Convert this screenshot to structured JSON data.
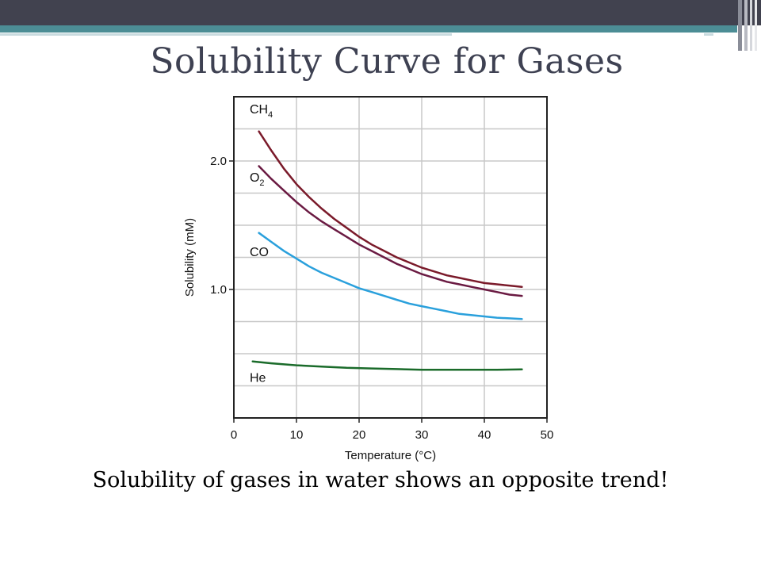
{
  "slide": {
    "title": "Solubility Curve for Gases",
    "caption": "Solubility of gases in water shows an opposite trend!",
    "header_color": "#41424f",
    "accent_color": "#4c8d95"
  },
  "chart_data": {
    "type": "line",
    "xlabel": "Temperature (°C)",
    "ylabel": "Solubility (mM)",
    "xlim": [
      0,
      50
    ],
    "ylim": [
      0,
      2.5
    ],
    "x_ticks": [
      0,
      10,
      20,
      30,
      40,
      50
    ],
    "y_ticks": [
      1.0,
      2.0
    ],
    "y_tick_labels": [
      "1.0",
      "2.0"
    ],
    "grid": true,
    "series": [
      {
        "name": "CH4",
        "label_main": "CH",
        "label_sub": "4",
        "color": "#7a1a2a",
        "points": [
          [
            4,
            2.23
          ],
          [
            6,
            2.08
          ],
          [
            8,
            1.94
          ],
          [
            10,
            1.82
          ],
          [
            12,
            1.72
          ],
          [
            14,
            1.63
          ],
          [
            16,
            1.55
          ],
          [
            18,
            1.48
          ],
          [
            20,
            1.41
          ],
          [
            22,
            1.35
          ],
          [
            24,
            1.3
          ],
          [
            26,
            1.25
          ],
          [
            28,
            1.21
          ],
          [
            30,
            1.17
          ],
          [
            32,
            1.14
          ],
          [
            34,
            1.11
          ],
          [
            36,
            1.09
          ],
          [
            38,
            1.07
          ],
          [
            40,
            1.05
          ],
          [
            42,
            1.04
          ],
          [
            44,
            1.03
          ],
          [
            46,
            1.02
          ]
        ]
      },
      {
        "name": "O2",
        "label_main": "O",
        "label_sub": "2",
        "color": "#6a1a42",
        "points": [
          [
            4,
            1.96
          ],
          [
            6,
            1.86
          ],
          [
            8,
            1.77
          ],
          [
            10,
            1.68
          ],
          [
            12,
            1.6
          ],
          [
            14,
            1.53
          ],
          [
            16,
            1.47
          ],
          [
            18,
            1.41
          ],
          [
            20,
            1.35
          ],
          [
            22,
            1.3
          ],
          [
            24,
            1.25
          ],
          [
            26,
            1.2
          ],
          [
            28,
            1.16
          ],
          [
            30,
            1.12
          ],
          [
            32,
            1.09
          ],
          [
            34,
            1.06
          ],
          [
            36,
            1.04
          ],
          [
            38,
            1.02
          ],
          [
            40,
            1.0
          ],
          [
            42,
            0.98
          ],
          [
            44,
            0.96
          ],
          [
            46,
            0.95
          ]
        ]
      },
      {
        "name": "CO",
        "label_main": "CO",
        "label_sub": "",
        "color": "#2aa0dc",
        "points": [
          [
            4,
            1.44
          ],
          [
            6,
            1.37
          ],
          [
            8,
            1.3
          ],
          [
            10,
            1.24
          ],
          [
            12,
            1.18
          ],
          [
            14,
            1.13
          ],
          [
            16,
            1.09
          ],
          [
            18,
            1.05
          ],
          [
            20,
            1.01
          ],
          [
            22,
            0.98
          ],
          [
            24,
            0.95
          ],
          [
            26,
            0.92
          ],
          [
            28,
            0.89
          ],
          [
            30,
            0.87
          ],
          [
            32,
            0.85
          ],
          [
            34,
            0.83
          ],
          [
            36,
            0.81
          ],
          [
            38,
            0.8
          ],
          [
            40,
            0.79
          ],
          [
            42,
            0.78
          ],
          [
            44,
            0.775
          ],
          [
            46,
            0.77
          ]
        ]
      },
      {
        "name": "He",
        "label_main": "He",
        "label_sub": "",
        "color": "#1a6b2a",
        "points": [
          [
            3,
            0.44
          ],
          [
            6,
            0.425
          ],
          [
            10,
            0.41
          ],
          [
            14,
            0.4
          ],
          [
            18,
            0.39
          ],
          [
            22,
            0.385
          ],
          [
            26,
            0.38
          ],
          [
            30,
            0.375
          ],
          [
            34,
            0.375
          ],
          [
            38,
            0.375
          ],
          [
            42,
            0.375
          ],
          [
            46,
            0.378
          ]
        ]
      }
    ]
  }
}
